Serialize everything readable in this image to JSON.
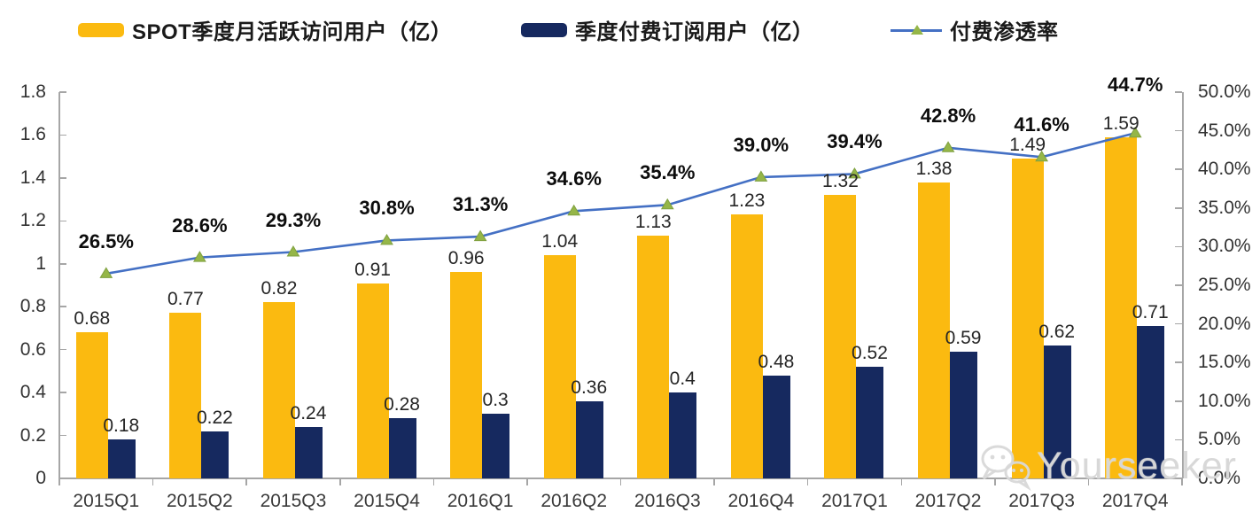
{
  "legend": {
    "items": [
      {
        "label": "SPOT季度月活跃访问用户（亿）",
        "swatch": "bar",
        "color": "#FBBA10"
      },
      {
        "label": "季度付费订阅用户（亿）",
        "swatch": "bar",
        "color": "#16295F"
      },
      {
        "label": "付费渗透率",
        "swatch": "line",
        "color": "#4470C4",
        "marker_color": "#95B648"
      }
    ]
  },
  "chart_data": {
    "type": "bar",
    "subtype": "grouped bars + line on secondary axis",
    "categories": [
      "2015Q1",
      "2015Q2",
      "2015Q3",
      "2015Q4",
      "2016Q1",
      "2016Q2",
      "2016Q3",
      "2016Q4",
      "2017Q1",
      "2017Q2",
      "2017Q3",
      "2017Q4"
    ],
    "series": [
      {
        "name": "SPOT季度月活跃访问用户（亿）",
        "type": "bar",
        "axis": "left",
        "color": "#FBBA10",
        "values": [
          0.68,
          0.77,
          0.82,
          0.91,
          0.96,
          1.04,
          1.13,
          1.23,
          1.32,
          1.38,
          1.49,
          1.59
        ]
      },
      {
        "name": "季度付费订阅用户（亿）",
        "type": "bar",
        "axis": "left",
        "color": "#16295F",
        "values": [
          0.18,
          0.22,
          0.24,
          0.28,
          0.3,
          0.36,
          0.4,
          0.48,
          0.52,
          0.59,
          0.62,
          0.71
        ]
      },
      {
        "name": "付费渗透率",
        "type": "line",
        "axis": "right",
        "color": "#4470C4",
        "marker": "triangle",
        "marker_color": "#95B648",
        "values": [
          26.5,
          28.6,
          29.3,
          30.8,
          31.3,
          34.6,
          35.4,
          39.0,
          39.4,
          42.8,
          41.6,
          44.7
        ],
        "labels": [
          "26.5%",
          "28.6%",
          "29.3%",
          "30.8%",
          "31.3%",
          "34.6%",
          "35.4%",
          "39.0%",
          "39.4%",
          "42.8%",
          "41.6%",
          "44.7%"
        ]
      }
    ],
    "left_axis": {
      "min": 0,
      "max": 1.8,
      "tick_labels": [
        "1.8",
        "1.6",
        "1.4",
        "1.2",
        "1",
        "0.8",
        "0.6",
        "0.4",
        "0.2",
        "0"
      ],
      "tick_values": [
        1.8,
        1.6,
        1.4,
        1.2,
        1,
        0.8,
        0.6,
        0.4,
        0.2,
        0
      ]
    },
    "right_axis": {
      "min": 0,
      "max": 50,
      "tick_labels": [
        "50.0%",
        "45.0%",
        "40.0%",
        "35.0%",
        "30.0%",
        "25.0%",
        "20.0%",
        "15.0%",
        "10.0%",
        "5.0%",
        "0.0%"
      ],
      "tick_values": [
        50,
        45,
        40,
        35,
        30,
        25,
        20,
        15,
        10,
        5,
        0
      ]
    },
    "grid": false,
    "legend_position": "top"
  },
  "watermark": {
    "text": "Yourseeker",
    "icon": "wechat-icon"
  }
}
